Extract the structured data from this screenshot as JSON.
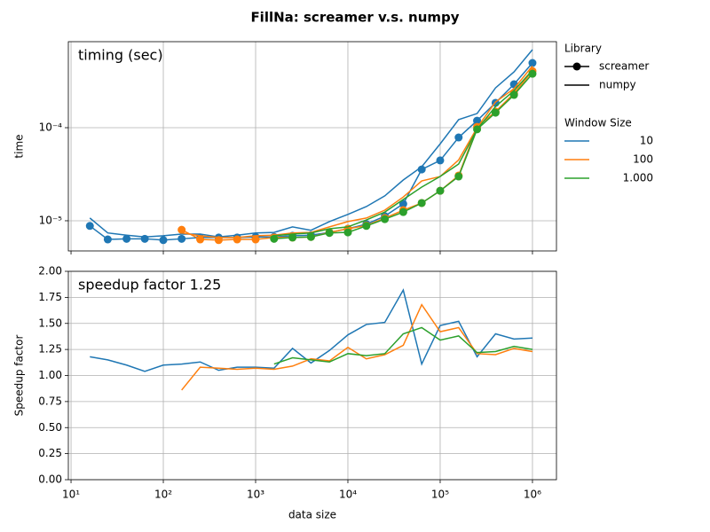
{
  "figure_title": "FillNa:  screamer v.s. numpy",
  "chart_data": [
    {
      "type": "line",
      "annotation": "timing (sec)",
      "y_label": "time",
      "x_log": true,
      "y_log": true,
      "grid": true,
      "x": [
        16,
        25,
        40,
        63,
        100,
        158,
        251,
        398,
        631,
        1000,
        1585,
        2512,
        3981,
        6310,
        10000,
        15849,
        25119,
        39811,
        63096,
        100000,
        158489,
        251189,
        398107,
        630957,
        1000000
      ],
      "xlim": [
        9.35,
        1820000
      ],
      "xticks": [
        10,
        100,
        1000,
        10000,
        100000,
        1000000
      ],
      "ylim": [
        4.74e-06,
        0.00084
      ],
      "yticks": [
        {
          "value": 1e-05,
          "label": "10⁻⁵"
        },
        {
          "value": 0.0001,
          "label": "10⁻⁴"
        }
      ],
      "library_legend": {
        "title": "Library",
        "entries": [
          {
            "name": "screamer",
            "marker": true
          },
          {
            "name": "numpy",
            "marker": false
          }
        ]
      },
      "window_legend_title": "Window Size",
      "series": [
        {
          "name": "10",
          "color": "#1f77b4",
          "values": [
            [
              8.8e-06,
              6.3e-06,
              6.4e-06,
              6.4e-06,
              6.2e-06,
              6.4e-06,
              6.6e-06,
              6.6e-06,
              6.6e-06,
              6.7e-06,
              6.7e-06,
              6.9e-06,
              7e-06,
              7.5e-06,
              8.2e-06,
              9.2e-06,
              1.12e-05,
              1.52e-05,
              3.56e-05,
              4.45e-05,
              7.85e-05,
              0.000119,
              0.000185,
              0.000293,
              0.000496
            ],
            [
              1.07e-05,
              7.4e-06,
              7e-06,
              6.7e-06,
              6.9e-06,
              7.2e-06,
              7.2e-06,
              6.7e-06,
              7e-06,
              7.4e-06,
              7.5e-06,
              8.6e-06,
              7.9e-06,
              9.8e-06,
              1.17e-05,
              1.42e-05,
              1.85e-05,
              2.74e-05,
              3.8e-05,
              6.7e-05,
              0.000122,
              0.000142,
              0.000268,
              0.000398,
              0.00069
            ]
          ]
        },
        {
          "name": "100",
          "color": "#ff7f0e",
          "values": [
            [
              null,
              null,
              null,
              null,
              null,
              8e-06,
              6.3e-06,
              6.2e-06,
              6.3e-06,
              6.3e-06,
              6.6e-06,
              6.6e-06,
              6.7e-06,
              7.5e-06,
              8.2e-06,
              8.9e-06,
              1.07e-05,
              1.3e-05,
              1.55e-05,
              2.1e-05,
              3.06e-05,
              0.000102,
              0.000149,
              0.000234,
              0.000406
            ],
            [
              null,
              null,
              null,
              null,
              null,
              7.4e-06,
              6.9e-06,
              6.6e-06,
              6.6e-06,
              6.9e-06,
              7e-06,
              7.4e-06,
              7.5e-06,
              8.6e-06,
              9.8e-06,
              1.07e-05,
              1.3e-05,
              1.8e-05,
              2.68e-05,
              2.99e-05,
              4.5e-05,
              0.0001,
              0.000189,
              0.000263,
              0.00046
            ]
          ]
        },
        {
          "name": "1.000",
          "color": "#2ca02c",
          "values": [
            [
              null,
              null,
              null,
              null,
              null,
              null,
              null,
              null,
              null,
              null,
              6.4e-06,
              6.6e-06,
              6.7e-06,
              7.4e-06,
              7.5e-06,
              8.8e-06,
              1.04e-05,
              1.24e-05,
              1.55e-05,
              2.1e-05,
              2.99e-05,
              9.6e-05,
              0.000145,
              0.000225,
              0.00038
            ],
            [
              null,
              null,
              null,
              null,
              null,
              null,
              null,
              null,
              null,
              null,
              6.9e-06,
              7.2e-06,
              7.4e-06,
              8.2e-06,
              8.6e-06,
              1.02e-05,
              1.24e-05,
              1.69e-05,
              2.3e-05,
              2.99e-05,
              4.07e-05,
              9.6e-05,
              0.000169,
              0.00025,
              0.000415
            ]
          ]
        }
      ]
    },
    {
      "type": "line",
      "annotation": "speedup factor  1.25",
      "y_label": "Speedup factor",
      "x_label": "data size",
      "x_log": true,
      "y_log": false,
      "grid": true,
      "x": [
        16,
        25,
        40,
        63,
        100,
        158,
        251,
        398,
        631,
        1000,
        1585,
        2512,
        3981,
        6310,
        10000,
        15849,
        25119,
        39811,
        63096,
        100000,
        158489,
        251189,
        398107,
        630957,
        1000000
      ],
      "xlim": [
        9.35,
        1820000
      ],
      "xticks": [
        {
          "value": 10,
          "label": "10¹"
        },
        {
          "value": 100,
          "label": "10²"
        },
        {
          "value": 1000,
          "label": "10³"
        },
        {
          "value": 10000,
          "label": "10⁴"
        },
        {
          "value": 100000,
          "label": "10⁵"
        },
        {
          "value": 1000000,
          "label": "10⁶"
        }
      ],
      "ylim": [
        0,
        2
      ],
      "yticks": [
        {
          "value": 0,
          "label": "0.00"
        },
        {
          "value": 0.25,
          "label": "0.25"
        },
        {
          "value": 0.5,
          "label": "0.50"
        },
        {
          "value": 0.75,
          "label": "0.75"
        },
        {
          "value": 1,
          "label": "1.00"
        },
        {
          "value": 1.25,
          "label": "1.25"
        },
        {
          "value": 1.5,
          "label": "1.50"
        },
        {
          "value": 1.75,
          "label": "1.75"
        },
        {
          "value": 2,
          "label": "2.00"
        }
      ],
      "series": [
        {
          "color": "#1f77b4",
          "values": [
            1.18,
            1.15,
            1.1,
            1.04,
            1.1,
            1.11,
            1.13,
            1.05,
            1.08,
            1.08,
            1.07,
            1.26,
            1.12,
            1.24,
            1.39,
            1.49,
            1.51,
            1.82,
            1.11,
            1.48,
            1.52,
            1.18,
            1.4,
            1.35,
            1.36
          ]
        },
        {
          "color": "#ff7f0e",
          "values": [
            null,
            null,
            null,
            null,
            null,
            0.86,
            1.08,
            1.07,
            1.06,
            1.07,
            1.06,
            1.09,
            1.16,
            1.14,
            1.27,
            1.16,
            1.2,
            1.29,
            1.68,
            1.42,
            1.46,
            1.21,
            1.2,
            1.26,
            1.23
          ]
        },
        {
          "color": "#2ca02c",
          "values": [
            null,
            null,
            null,
            null,
            null,
            null,
            null,
            null,
            null,
            null,
            1.11,
            1.17,
            1.15,
            1.13,
            1.21,
            1.19,
            1.21,
            1.4,
            1.46,
            1.34,
            1.38,
            1.22,
            1.23,
            1.28,
            1.25
          ]
        }
      ]
    }
  ]
}
